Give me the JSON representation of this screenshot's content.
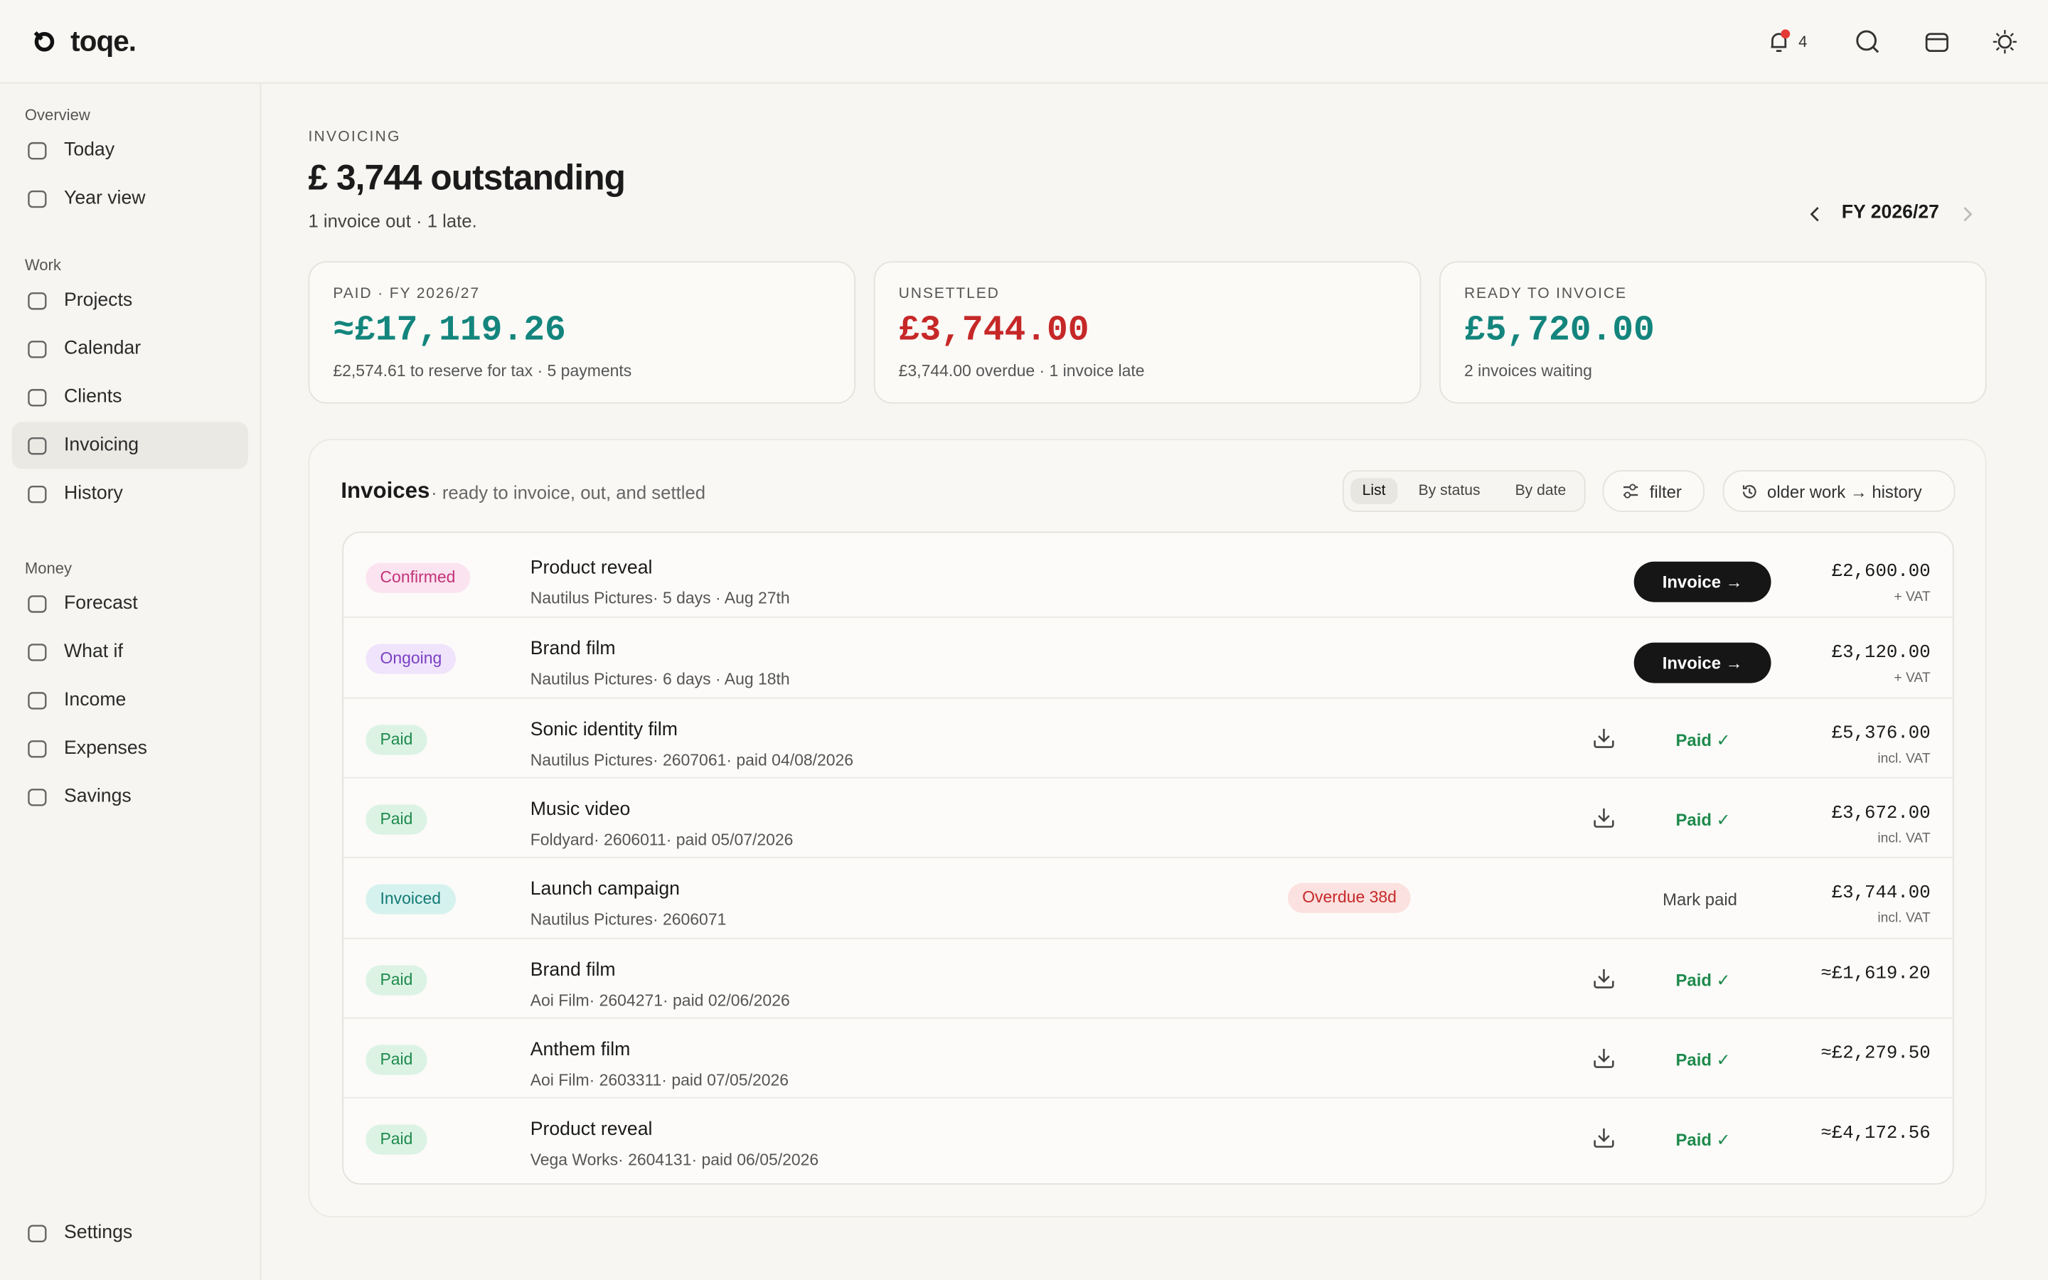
{
  "brand": "toqe.",
  "header": {
    "notification_count": "4"
  },
  "sidebar": {
    "sections": [
      {
        "title": "Overview",
        "items": [
          "Today",
          "Year view"
        ]
      },
      {
        "title": "Work",
        "items": [
          "Projects",
          "Calendar",
          "Clients",
          "Invoicing",
          "History"
        ]
      },
      {
        "title": "Money",
        "items": [
          "Forecast",
          "What if",
          "Income",
          "Expenses",
          "Savings"
        ]
      }
    ],
    "settings": "Settings"
  },
  "page": {
    "eyebrow": "INVOICING",
    "title": "£ 3,744 outstanding",
    "subtitle": "1 invoice out · 1 late.",
    "period": "FY 2026/27"
  },
  "cards": [
    {
      "label": "PAID · FY 2026/27",
      "value": "≈£17,119.26",
      "note": "£2,574.61 to reserve for tax · 5 payments",
      "color": "#13857d"
    },
    {
      "label": "UNSETTLED",
      "value": "£3,744.00",
      "note": "£3,744.00 overdue · 1 invoice late",
      "color": "#c62828"
    },
    {
      "label": "READY TO INVOICE",
      "value": "£5,720.00",
      "note": "2 invoices waiting",
      "color": "#13857d"
    }
  ],
  "invoices": {
    "title": "Invoices",
    "subtitle": "· ready to invoice, out, and settled",
    "views": [
      "List",
      "By status",
      "By date"
    ],
    "filter": "filter",
    "history": "older work → history",
    "rows": [
      {
        "status": "Confirmed",
        "status_color": "#c2337a",
        "status_bg": "#fbe3ef",
        "title": "Product reveal",
        "meta": "Nautilus Pictures· 5 days · Aug 27th",
        "action": "Invoice →",
        "action_kind": "button",
        "amount": "£2,600.00",
        "vat": "+ VAT"
      },
      {
        "status": "Ongoing",
        "status_color": "#7b3fc4",
        "status_bg": "#efe4fb",
        "title": "Brand film",
        "meta": "Nautilus Pictures· 6 days · Aug 18th",
        "action": "Invoice →",
        "action_kind": "button",
        "amount": "£3,120.00",
        "vat": "+ VAT"
      },
      {
        "status": "Paid",
        "status_color": "#1e8a4c",
        "status_bg": "#dcf3e4",
        "title": "Sonic identity film",
        "meta": "Nautilus Pictures· 2607061· paid 04/08/2026",
        "action": "Paid ✓",
        "action_kind": "paid",
        "amount": "£5,376.00",
        "vat": "incl. VAT"
      },
      {
        "status": "Paid",
        "status_color": "#1e8a4c",
        "status_bg": "#dcf3e4",
        "title": "Music video",
        "meta": "Foldyard· 2606011· paid 05/07/2026",
        "action": "Paid ✓",
        "action_kind": "paid",
        "amount": "£3,672.00",
        "vat": "incl. VAT"
      },
      {
        "status": "Invoiced",
        "status_color": "#137a74",
        "status_bg": "#d6f2ef",
        "title": "Launch campaign",
        "meta": "Nautilus Pictures· 2606071",
        "badge": "Overdue 38d",
        "action": "Mark paid",
        "action_kind": "text",
        "amount": "£3,744.00",
        "vat": "incl. VAT"
      },
      {
        "status": "Paid",
        "status_color": "#1e8a4c",
        "status_bg": "#dcf3e4",
        "title": "Brand film",
        "meta": "Aoi Film· 2604271· paid 02/06/2026",
        "action": "Paid ✓",
        "action_kind": "paid",
        "amount": "≈£1,619.20"
      },
      {
        "status": "Paid",
        "status_color": "#1e8a4c",
        "status_bg": "#dcf3e4",
        "title": "Anthem film",
        "meta": "Aoi Film· 2603311· paid 07/05/2026",
        "action": "Paid ✓",
        "action_kind": "paid",
        "amount": "≈£2,279.50"
      },
      {
        "status": "Paid",
        "status_color": "#1e8a4c",
        "status_bg": "#dcf3e4",
        "title": "Product reveal",
        "meta": "Vega Works· 2604131· paid 06/05/2026",
        "action": "Paid ✓",
        "action_kind": "paid",
        "amount": "≈£4,172.56"
      }
    ]
  }
}
